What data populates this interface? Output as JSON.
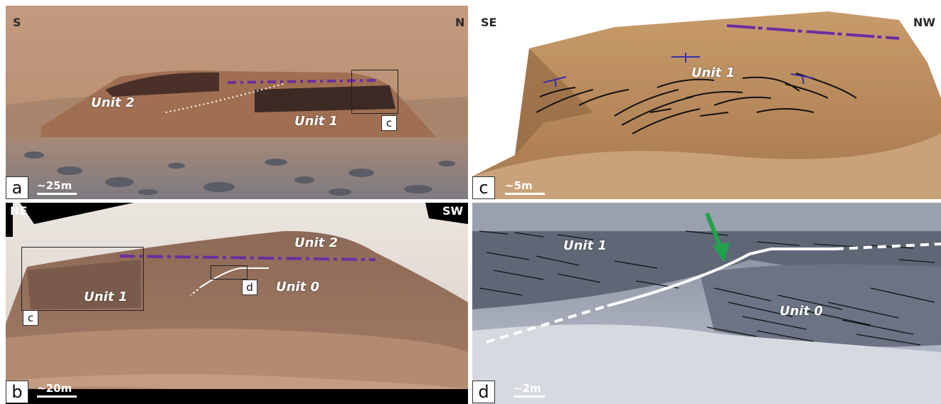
{
  "panels": {
    "a": {
      "letter": "a",
      "dir_left": "S",
      "dir_right": "N",
      "unit_labels": [
        "Unit 2",
        "Unit 1"
      ],
      "box_tag": "c",
      "scale": "~25m"
    },
    "b": {
      "letter": "b",
      "dir_left": "NE",
      "dir_right": "SW",
      "unit_labels": [
        "Unit 2",
        "Unit 1",
        "Unit 0"
      ],
      "box_tags": [
        "c",
        "d"
      ],
      "scale": "~20m"
    },
    "c": {
      "letter": "c",
      "dir_left": "SE",
      "dir_right": "NW",
      "unit_labels": [
        "Unit 1"
      ],
      "scale": "~5m"
    },
    "d": {
      "letter": "d",
      "unit_labels": [
        "Unit 1",
        "Unit 0"
      ],
      "scale": "~2m"
    }
  },
  "colors": {
    "contact_line": "#6a2ea0",
    "bedding_lines": "#111111",
    "unconformity": "#ffffff",
    "arrow": "#1fa34a",
    "strike_dip": "#3b2ea8"
  }
}
